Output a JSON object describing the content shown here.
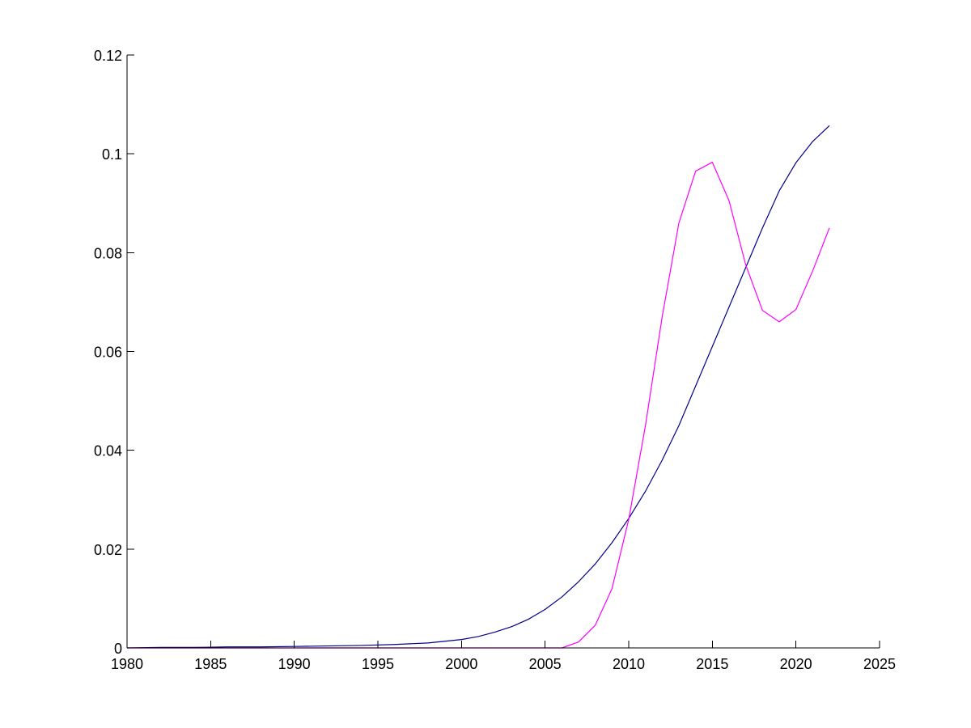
{
  "chart_data": {
    "type": "line",
    "title": "",
    "xlabel": "",
    "ylabel": "",
    "xlim": [
      1980,
      2025
    ],
    "ylim": [
      0,
      0.12
    ],
    "grid": false,
    "x_ticks": [
      1980,
      1985,
      1990,
      1995,
      2000,
      2005,
      2010,
      2015,
      2020,
      2025
    ],
    "x_tick_labels": [
      "1980",
      "1985",
      "1990",
      "1995",
      "2000",
      "2005",
      "2010",
      "2015",
      "2020",
      "2025"
    ],
    "y_ticks": [
      0,
      0.02,
      0.04,
      0.06,
      0.08,
      0.1,
      0.12
    ],
    "y_tick_labels": [
      "0",
      "0.02",
      "0.04",
      "0.06",
      "0.08",
      "0.1",
      "0.12"
    ],
    "series": [
      {
        "color": "#00008b",
        "x": [
          1980,
          1982,
          1984,
          1986,
          1988,
          1990,
          1992,
          1994,
          1996,
          1998,
          2000,
          2001,
          2002,
          2003,
          2004,
          2005,
          2006,
          2007,
          2008,
          2009,
          2010,
          2011,
          2012,
          2013,
          2014,
          2015,
          2016,
          2017,
          2018,
          2019,
          2020,
          2021,
          2022
        ],
        "y": [
          0.0,
          0.0001,
          0.0001,
          0.0002,
          0.0002,
          0.0003,
          0.0004,
          0.0005,
          0.0007,
          0.001,
          0.0017,
          0.0023,
          0.0032,
          0.0043,
          0.0058,
          0.0078,
          0.0103,
          0.0134,
          0.017,
          0.0213,
          0.0262,
          0.0317,
          0.038,
          0.045,
          0.053,
          0.061,
          0.069,
          0.077,
          0.085,
          0.0925,
          0.0982,
          0.1025,
          0.1057
        ]
      },
      {
        "color": "#ff00ff",
        "x": [
          1980,
          2006,
          2007,
          2008,
          2009,
          2010,
          2011,
          2012,
          2013,
          2014,
          2015,
          2016,
          2017,
          2018,
          2019,
          2020,
          2021,
          2022
        ],
        "y": [
          0.0,
          0.0,
          0.0012,
          0.0046,
          0.012,
          0.026,
          0.045,
          0.067,
          0.086,
          0.0965,
          0.0983,
          0.0905,
          0.0775,
          0.0683,
          0.066,
          0.0685,
          0.0763,
          0.085
        ]
      }
    ]
  }
}
